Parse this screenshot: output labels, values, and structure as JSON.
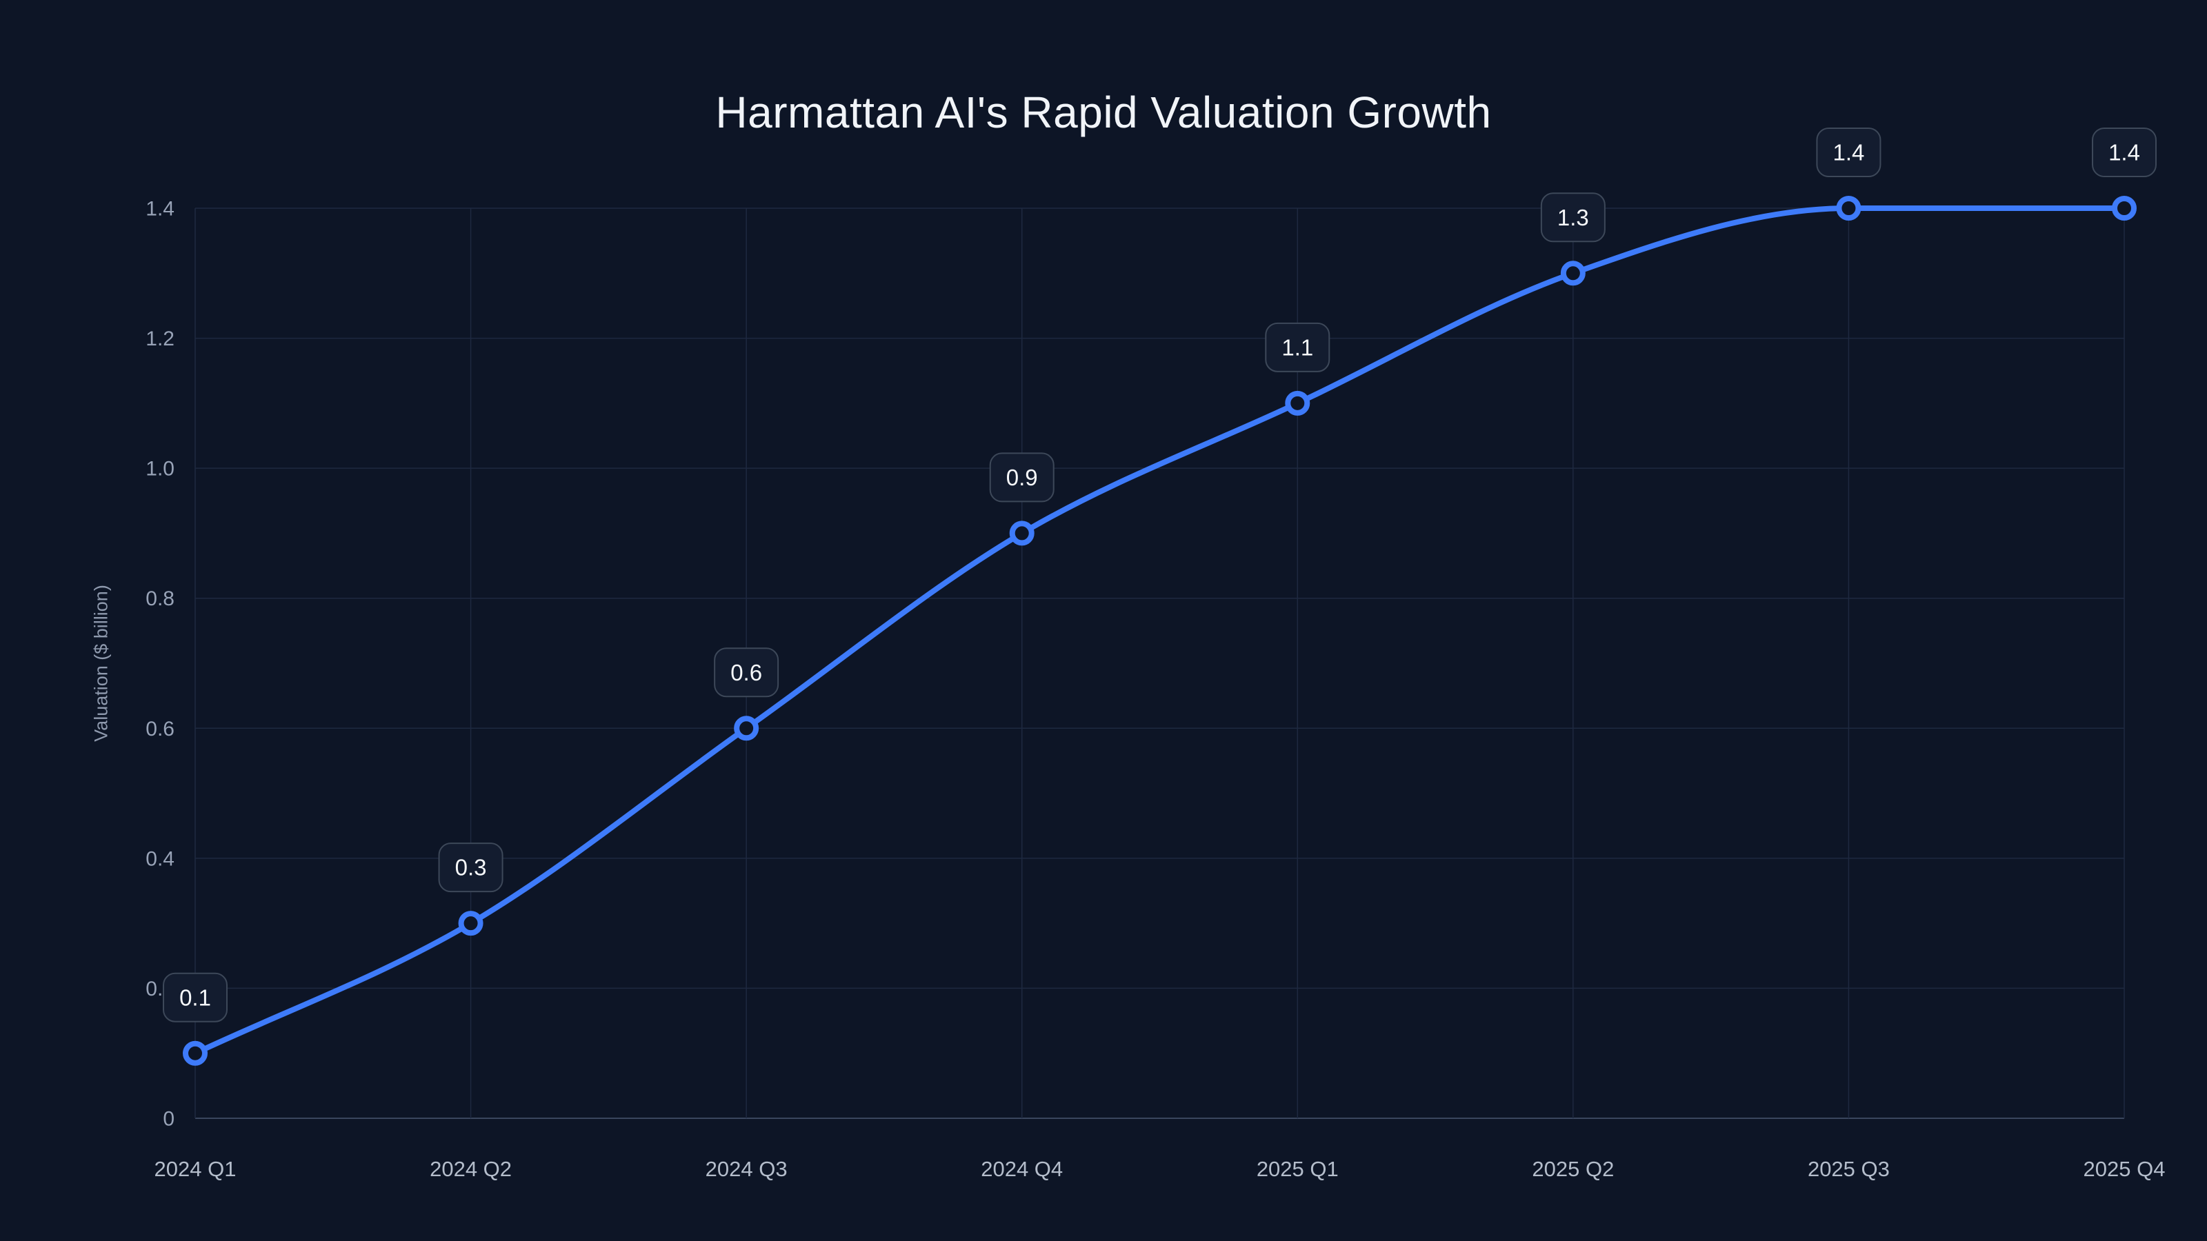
{
  "page": {
    "background": "#0d1526"
  },
  "chart_data": {
    "type": "line",
    "title": "Harmattan AI's Rapid Valuation Growth",
    "xlabel": "",
    "ylabel": "Valuation ($ billion)",
    "categories": [
      "2024 Q1",
      "2024 Q2",
      "2024 Q3",
      "2024 Q4",
      "2025 Q1",
      "2025 Q2",
      "2025 Q3",
      "2025 Q4"
    ],
    "series": [
      {
        "name": "Valuation",
        "values": [
          0.1,
          0.3,
          0.6,
          0.9,
          1.1,
          1.3,
          1.4,
          1.4
        ]
      }
    ],
    "point_labels": [
      "0.1",
      "0.3",
      "0.6",
      "0.9",
      "1.1",
      "1.3",
      "1.4",
      "1.4"
    ],
    "ytick_labels": [
      "0",
      "0.2",
      "0.4",
      "0.6",
      "0.8",
      "1.0",
      "1.2",
      "1.4"
    ],
    "ylim": [
      0,
      1.4
    ],
    "grid": true,
    "legend_position": "none",
    "line_style": "smooth",
    "marker_style": "open-circle",
    "colors": {
      "background": "#0d1526",
      "line": "#3e7bfa",
      "marker_fill": "#0d1526",
      "grid": "#1e2940",
      "axis_line": "#3a465e",
      "ytick_text": "#98a3b7",
      "xtick_text": "#b4bdcb",
      "title_text": "#f1f4f8",
      "ylabel_text": "#8e99ad",
      "label_box_fill": "#131c2f",
      "label_box_border": "#3d4859",
      "label_text": "#f7f9fb"
    }
  }
}
